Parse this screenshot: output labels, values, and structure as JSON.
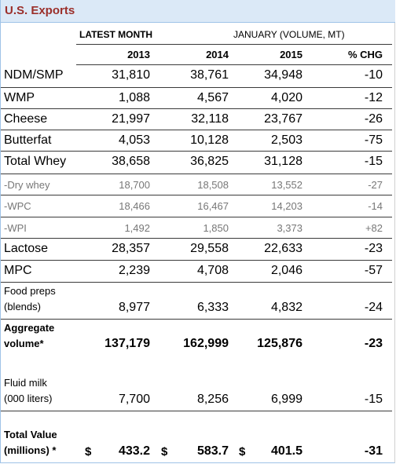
{
  "title": "U.S. Exports",
  "header": {
    "latest_month": "LATEST MONTH",
    "period": "JANUARY (VOLUME, MT)"
  },
  "columns": [
    "2013",
    "2014",
    "2015",
    "% CHG"
  ],
  "rows": [
    {
      "label": "NDM/SMP",
      "v2013": "31,810",
      "v2014": "38,761",
      "v2015": "34,948",
      "chg": "-10"
    },
    {
      "label": "WMP",
      "v2013": "1,088",
      "v2014": "4,567",
      "v2015": "4,020",
      "chg": "-12"
    },
    {
      "label": "Cheese",
      "v2013": "21,997",
      "v2014": "32,118",
      "v2015": "23,767",
      "chg": "-26"
    },
    {
      "label": "Butterfat",
      "v2013": "4,053",
      "v2014": "10,128",
      "v2015": "2,503",
      "chg": "-75"
    },
    {
      "label": "Total Whey",
      "v2013": "38,658",
      "v2014": "36,825",
      "v2015": "31,128",
      "chg": "-15"
    },
    {
      "label": "-Dry whey",
      "v2013": "18,700",
      "v2014": "18,508",
      "v2015": "13,552",
      "chg": "-27"
    },
    {
      "label": "-WPC",
      "v2013": "18,466",
      "v2014": "16,467",
      "v2015": "14,203",
      "chg": "-14"
    },
    {
      "label": "-WPI",
      "v2013": "1,492",
      "v2014": "1,850",
      "v2015": "3,373",
      "chg": "+82"
    },
    {
      "label": "Lactose",
      "v2013": "28,357",
      "v2014": "29,558",
      "v2015": "22,633",
      "chg": "-23"
    },
    {
      "label": "MPC",
      "v2013": "2,239",
      "v2014": "4,708",
      "v2015": "2,046",
      "chg": "-57"
    },
    {
      "label_line1": "Food preps",
      "label_line2": "(blends)",
      "v2013": "8,977",
      "v2014": "6,333",
      "v2015": "4,832",
      "chg": "-24"
    },
    {
      "label_line1": "Aggregate",
      "label_line2": "volume*",
      "v2013": "137,179",
      "v2014": "162,999",
      "v2015": "125,876",
      "chg": "-23"
    },
    {
      "label_line1": "Fluid milk",
      "label_line2": "(000 liters)",
      "v2013": "7,700",
      "v2014": "8,256",
      "v2015": "6,999",
      "chg": "-15"
    },
    {
      "label_line1": "Total Value",
      "label_line2": "(millions) *",
      "currency": "$",
      "v2013": "433.2",
      "v2014": "583.7",
      "v2015": "401.5",
      "chg": "-31"
    }
  ]
}
